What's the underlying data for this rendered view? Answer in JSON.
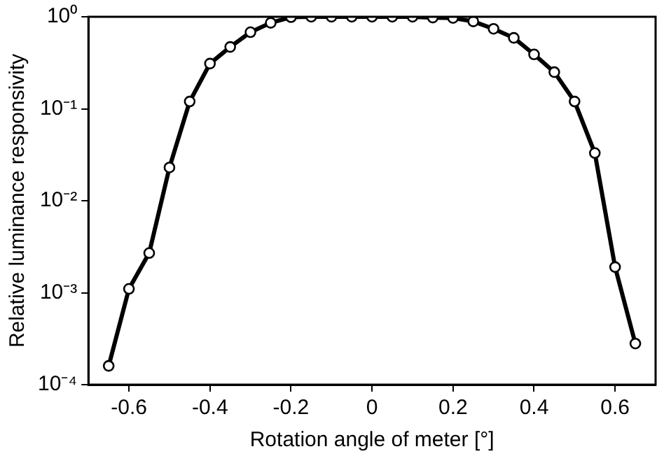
{
  "chart_data": {
    "type": "line",
    "xlabel": "Rotation angle of meter [°]",
    "ylabel": "Relative luminance responsivity",
    "x": [
      -0.65,
      -0.6,
      -0.55,
      -0.5,
      -0.45,
      -0.4,
      -0.35,
      -0.3,
      -0.25,
      -0.2,
      -0.15,
      -0.1,
      -0.05,
      0,
      0.05,
      0.1,
      0.15,
      0.2,
      0.25,
      0.3,
      0.35,
      0.4,
      0.45,
      0.5,
      0.55,
      0.6,
      0.65
    ],
    "series": [
      {
        "color": "#000000",
        "values": [
          0.00016,
          0.0011,
          0.0027,
          0.023,
          0.12,
          0.31,
          0.47,
          0.68,
          0.86,
          0.99,
          1,
          1,
          1,
          1,
          1,
          1,
          0.98,
          0.97,
          0.89,
          0.74,
          0.59,
          0.39,
          0.25,
          0.12,
          0.033,
          0.0019,
          0.00028
        ]
      }
    ],
    "log": "y",
    "marker": "circle",
    "line_style": "solid",
    "grid": false,
    "legend": false,
    "xlim": [
      -0.7,
      0.7
    ],
    "xticks": [
      -0.6,
      -0.4,
      -0.2,
      0,
      0.2,
      0.4,
      0.6
    ],
    "ylim": [
      0.0001,
      1
    ],
    "yticks": [
      {
        "value": 0.0001,
        "label": "10⁻⁴"
      },
      {
        "value": 0.001,
        "label": "10⁻³"
      },
      {
        "value": 0.01,
        "label": "10⁻²"
      },
      {
        "value": 0.1,
        "label": "10⁻¹"
      },
      {
        "value": 1,
        "label": "10⁰"
      }
    ]
  }
}
